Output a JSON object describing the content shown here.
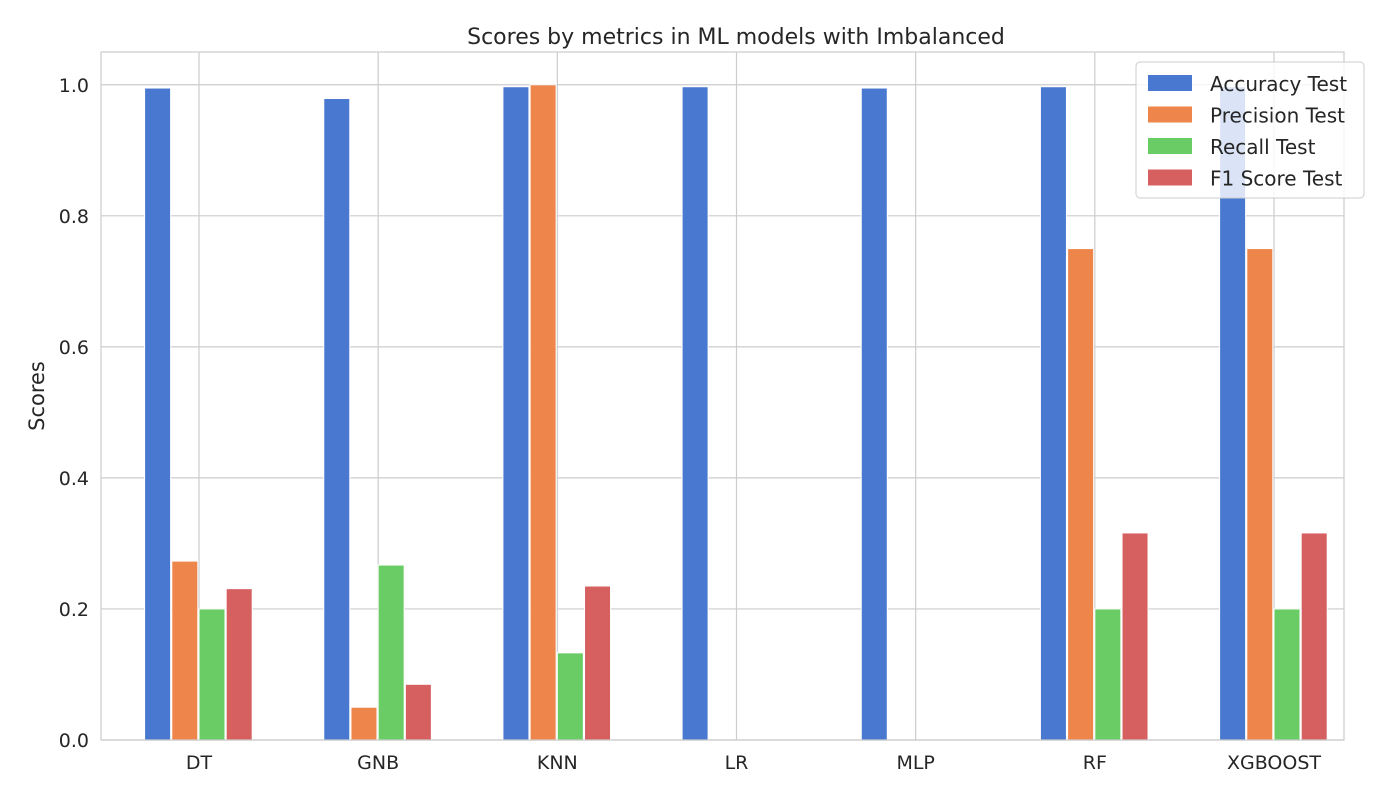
{
  "chart_data": {
    "type": "bar",
    "title": "Scores by metrics in ML models with Imbalanced",
    "xlabel": "",
    "ylabel": "Scores",
    "ylim": [
      0,
      1.05
    ],
    "yticks": [
      "0.0",
      "0.2",
      "0.4",
      "0.6",
      "0.8",
      "1.0"
    ],
    "grid": true,
    "legend_position": "top-right",
    "categories": [
      "DT",
      "GNB",
      "KNN",
      "LR",
      "MLP",
      "RF",
      "XGBOOST"
    ],
    "series": [
      {
        "name": "Accuracy Test",
        "color": "#4878d0",
        "values": [
          0.995,
          0.979,
          0.997,
          0.997,
          0.995,
          0.997,
          0.997
        ]
      },
      {
        "name": "Precision Test",
        "color": "#ee854a",
        "values": [
          0.273,
          0.05,
          1.0,
          0.0,
          0.0,
          0.75,
          0.75
        ]
      },
      {
        "name": "Recall Test",
        "color": "#6acc64",
        "values": [
          0.2,
          0.267,
          0.133,
          0.0,
          0.0,
          0.2,
          0.2
        ]
      },
      {
        "name": "F1 Score Test",
        "color": "#d65f5f",
        "values": [
          0.231,
          0.085,
          0.235,
          0.0,
          0.0,
          0.316,
          0.316
        ]
      }
    ]
  }
}
